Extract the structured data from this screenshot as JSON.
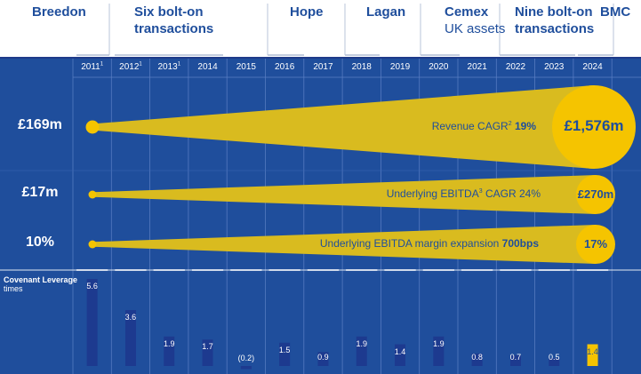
{
  "annotations": [
    {
      "lines": [
        "Breedon"
      ],
      "sub": ""
    },
    {
      "lines": [
        "Six bolt-on",
        "transactions"
      ],
      "sub": ""
    },
    {
      "lines": [
        "Hope"
      ],
      "sub": ""
    },
    {
      "lines": [
        "Lagan"
      ],
      "sub": ""
    },
    {
      "lines": [
        "Cemex"
      ],
      "sub": "UK assets"
    },
    {
      "lines": [
        "Nine bolt-on",
        "transactions"
      ],
      "sub": ""
    },
    {
      "lines": [
        "BMC"
      ],
      "sub": ""
    }
  ],
  "colors": {
    "navy": "#1f4e9c",
    "navy_dark": "#1e3a8a",
    "bar": "#1d3a8f",
    "yellow": "#f5c400",
    "yellow_beam": "#d9bb1f",
    "white": "#ffffff"
  },
  "chart_data": [
    {
      "type": "area",
      "title": "",
      "years": [
        "2011",
        "2012",
        "2013",
        "2014",
        "2015",
        "2016",
        "2017",
        "2018",
        "2019",
        "2020",
        "2021",
        "2022",
        "2023",
        "2024"
      ],
      "year_footnotes": [
        "1",
        "1",
        "1",
        "",
        "",
        "",
        "",
        "",
        "",
        "",
        "",
        "",
        "",
        ""
      ],
      "metrics": [
        {
          "start_label": "£169m",
          "end_label": "£1,576m",
          "start_value": 169,
          "end_value": 1576,
          "unit": "£m",
          "label_parts": [
            {
              "t": "Revenue CAGR",
              "b": false
            },
            {
              "t": "2",
              "sup": true
            },
            {
              "t": " 19%",
              "b": true
            }
          ]
        },
        {
          "start_label": "£17m",
          "end_label": "£270m",
          "start_value": 17,
          "end_value": 270,
          "unit": "£m",
          "label_parts": [
            {
              "t": "Underlying EBITDA",
              "b": false
            },
            {
              "t": "3",
              "sup": true
            },
            {
              "t": " CAGR 24%",
              "b": false
            }
          ]
        },
        {
          "start_label": "10%",
          "end_label": "17%",
          "start_value": 10,
          "end_value": 17,
          "unit": "%",
          "label_parts": [
            {
              "t": "Underlying EBITDA margin expansion ",
              "b": false
            },
            {
              "t": "700bps",
              "b": true
            }
          ]
        }
      ]
    },
    {
      "type": "bar",
      "title": "Covenant Leverage",
      "ylabel": "times",
      "categories": [
        "2011",
        "2012",
        "2013",
        "2014",
        "2015",
        "2016",
        "2017",
        "2018",
        "2019",
        "2020",
        "2021",
        "2022",
        "2023",
        "2024"
      ],
      "values": [
        5.6,
        3.6,
        1.9,
        1.7,
        -0.2,
        1.5,
        0.9,
        1.9,
        1.4,
        1.9,
        0.8,
        0.7,
        0.5,
        1.4
      ],
      "value_labels": [
        "5.6",
        "3.6",
        "1.9",
        "1.7",
        "(0.2)",
        "1.5",
        "0.9",
        "1.9",
        "1.4",
        "1.9",
        "0.8",
        "0.7",
        "0.5",
        "1.4"
      ],
      "highlight_index": 13
    }
  ]
}
